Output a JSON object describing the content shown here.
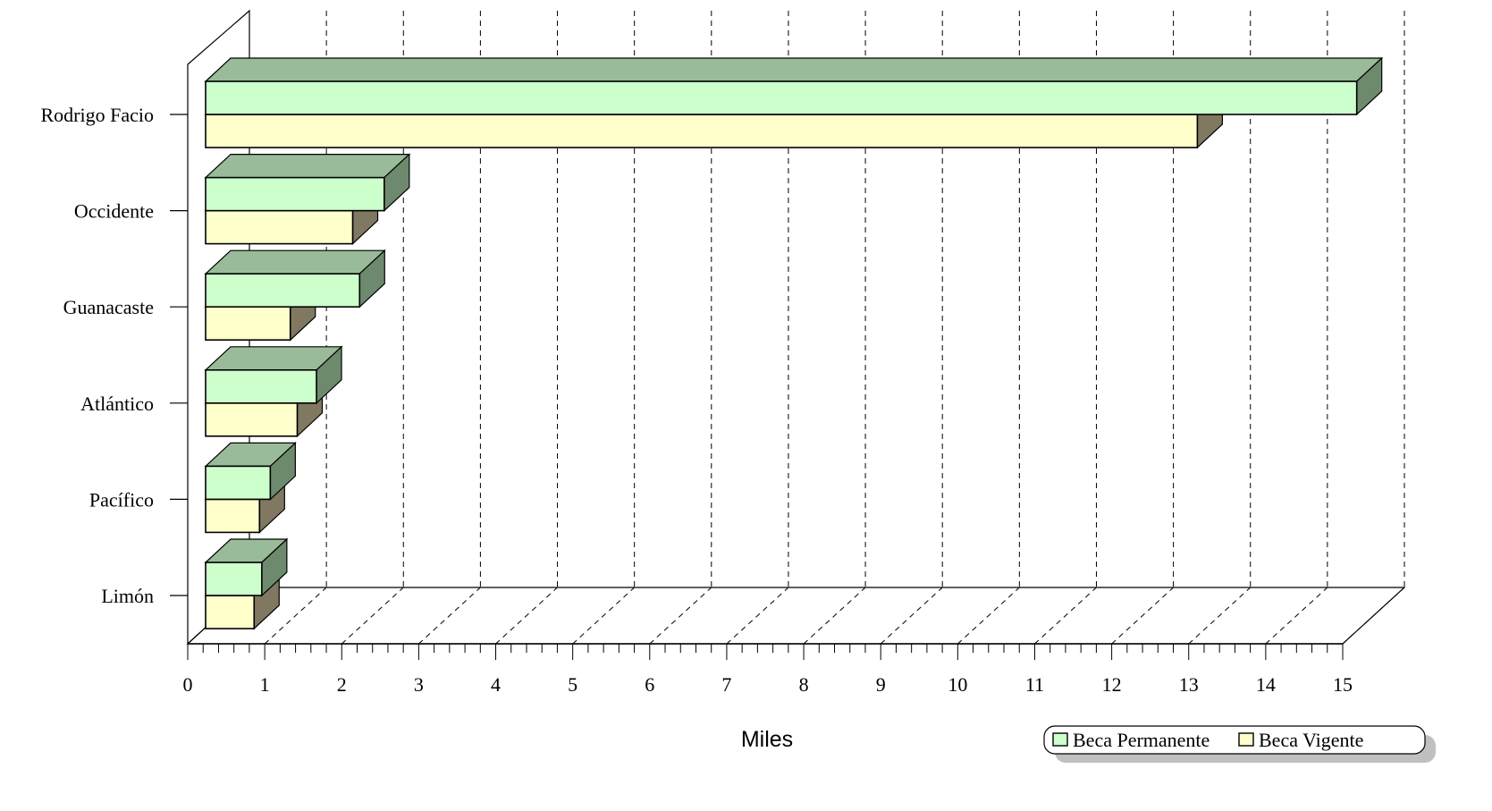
{
  "chart_data": {
    "type": "bar",
    "orientation": "horizontal",
    "style": "3d",
    "categories": [
      "Rodrigo Facio",
      "Occidente",
      "Guanacaste",
      "Atlántico",
      "Pacífico",
      "Limón"
    ],
    "series": [
      {
        "name": "Beca Permanente",
        "values": [
          14.95,
          2.32,
          2.0,
          1.44,
          0.84,
          0.73
        ]
      },
      {
        "name": "Beca Vigente",
        "values": [
          12.88,
          1.91,
          1.1,
          1.19,
          0.7,
          0.63
        ]
      }
    ],
    "xlabel": "Miles",
    "ylabel": "",
    "xlim": [
      0,
      15
    ],
    "x_ticks": [
      "0",
      "1",
      "2",
      "3",
      "4",
      "5",
      "6",
      "7",
      "8",
      "9",
      "10",
      "11",
      "12",
      "13",
      "14",
      "15"
    ],
    "grid": true,
    "legend_position": "bottom-right"
  },
  "colors": {
    "permanente_front": "#CCFFCC",
    "permanente_top": "#99BB99",
    "permanente_side": "#6E8A6E",
    "vigente_front": "#FFFFCC",
    "vigente_top": "#B8B890",
    "vigente_side": "#807860",
    "wall": "#FFFFFF",
    "grid": "#000000",
    "legend_shadow": "#C0C0C0"
  }
}
